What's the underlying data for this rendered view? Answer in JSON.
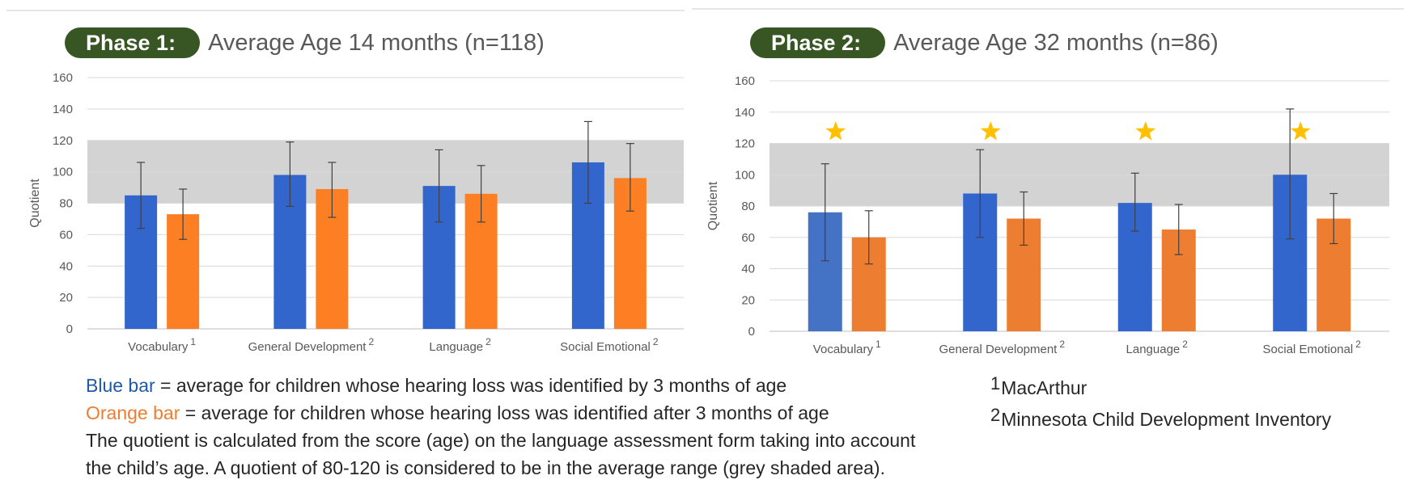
{
  "colors": {
    "blue": "#3366cc",
    "blue_light": "#4472c4",
    "orange": "#fd7f23",
    "orange_light": "#ed7d31",
    "shade": "#d3d3d3",
    "star": "#ffc000",
    "title_pill": "#375623"
  },
  "chart_data": [
    {
      "type": "bar",
      "badge": "Phase 1:",
      "title": "Average Age 14 months (n=118)",
      "ylabel": "Quotient",
      "ylim": [
        0,
        160
      ],
      "yticks": [
        0,
        20,
        40,
        60,
        80,
        100,
        120,
        140,
        160
      ],
      "grid": true,
      "average_range": [
        80,
        120
      ],
      "categories": [
        "Vocabulary",
        "General Development",
        "Language",
        "Social Emotional"
      ],
      "category_superscripts": [
        "1",
        "2",
        "2",
        "2"
      ],
      "series": [
        {
          "color": "blue",
          "values": [
            85,
            98,
            91,
            106
          ],
          "error_low": [
            64,
            78,
            68,
            80
          ],
          "error_high": [
            106,
            119,
            114,
            132
          ]
        },
        {
          "color": "orange",
          "values": [
            73,
            89,
            86,
            96
          ],
          "error_low": [
            57,
            71,
            68,
            75
          ],
          "error_high": [
            89,
            106,
            104,
            118
          ]
        }
      ],
      "stars": []
    },
    {
      "type": "bar",
      "badge": "Phase 2:",
      "title": "Average Age 32 months (n=86)",
      "ylabel": "Quotient",
      "ylim": [
        0,
        160
      ],
      "yticks": [
        0,
        20,
        40,
        60,
        80,
        100,
        120,
        140,
        160
      ],
      "grid": true,
      "average_range": [
        80,
        120
      ],
      "categories": [
        "Vocabulary",
        "General Development",
        "Language",
        "Social Emotional"
      ],
      "category_superscripts": [
        "1",
        "2",
        "2",
        "2"
      ],
      "series": [
        {
          "color": "blue",
          "values": [
            76,
            88,
            82,
            100
          ],
          "error_low": [
            45,
            60,
            64,
            59
          ],
          "error_high": [
            107,
            116,
            101,
            142
          ]
        },
        {
          "color": "orange",
          "values": [
            60,
            72,
            65,
            72
          ],
          "error_low": [
            43,
            55,
            49,
            56
          ],
          "error_high": [
            77,
            89,
            81,
            88
          ]
        }
      ],
      "stars": [
        true,
        true,
        true,
        true
      ]
    }
  ],
  "legend": {
    "blue_term": "Blue bar",
    "blue_desc": " = average for children whose hearing loss was identified by 3 months of age",
    "orange_term": "Orange bar",
    "orange_desc": " = average for children whose hearing loss was identified after 3 months of age",
    "note_line1": "The quotient is calculated from the score (age) on the language assessment form taking into account",
    "note_line2": "the child’s age. A quotient of 80-120 is considered to be in the average range (grey shaded area)."
  },
  "footnotes": [
    {
      "mark": "1",
      "text": "MacArthur"
    },
    {
      "mark": "2",
      "text": "Minnesota Child Development Inventory"
    }
  ]
}
